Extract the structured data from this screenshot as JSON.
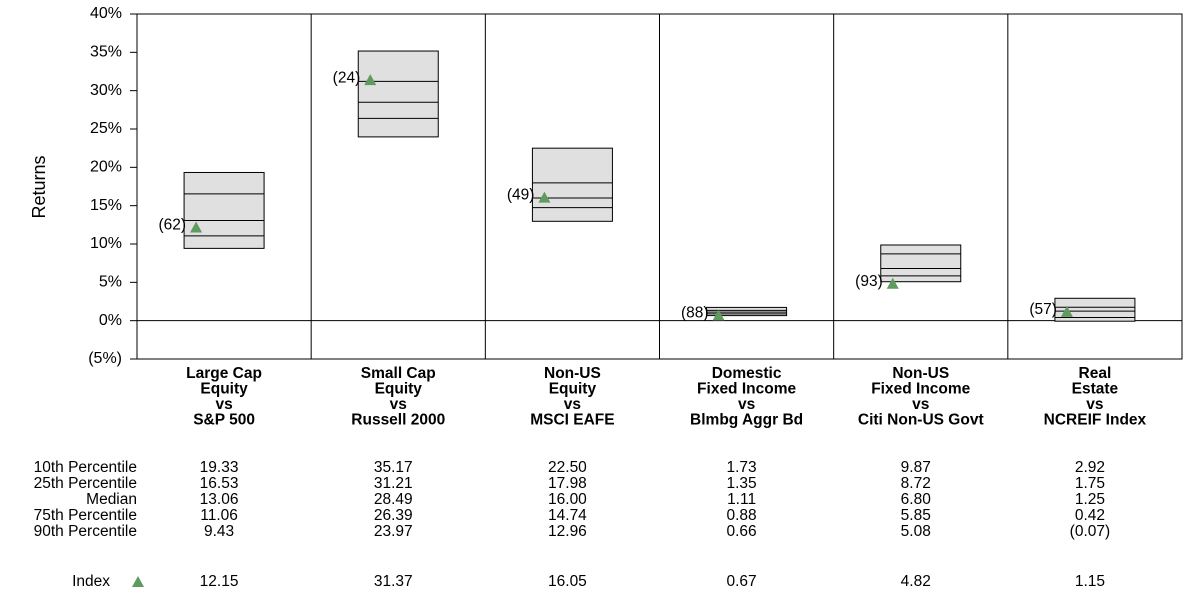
{
  "chart_data": {
    "type": "floating_box",
    "ylabel": "Returns",
    "ylim": [
      -5,
      40
    ],
    "yticks": [
      {
        "value": -5,
        "label": "(5%)"
      },
      {
        "value": 0,
        "label": "0%"
      },
      {
        "value": 5,
        "label": "5%"
      },
      {
        "value": 10,
        "label": "10%"
      },
      {
        "value": 15,
        "label": "15%"
      },
      {
        "value": 20,
        "label": "20%"
      },
      {
        "value": 25,
        "label": "25%"
      },
      {
        "value": 30,
        "label": "30%"
      },
      {
        "value": 35,
        "label": "35%"
      },
      {
        "value": 40,
        "label": "40%"
      }
    ],
    "box_color": "#e0e0e0",
    "negative_color": "#e8000b",
    "categories": [
      [
        "Large Cap",
        "Equity",
        "vs",
        "S&P 500"
      ],
      [
        "Small Cap",
        "Equity",
        "vs",
        "Russell 2000"
      ],
      [
        "Non-US",
        "Equity",
        "vs",
        "MSCI EAFE"
      ],
      [
        "Domestic",
        "Fixed Income",
        "vs",
        "Blmbg Aggr Bd"
      ],
      [
        "Non-US",
        "Fixed Income",
        "vs",
        "Citi Non-US Govt"
      ],
      [
        "Real",
        "Estate",
        "vs",
        "NCREIF Index"
      ]
    ],
    "series": [
      {
        "name": "10th Percentile",
        "values": [
          19.33,
          35.17,
          22.5,
          1.73,
          9.87,
          2.92
        ],
        "value_labels": [
          "19.33",
          "35.17",
          "22.50",
          "1.73",
          "9.87",
          "2.92"
        ]
      },
      {
        "name": "25th Percentile",
        "values": [
          16.53,
          31.21,
          17.98,
          1.35,
          8.72,
          1.75
        ],
        "value_labels": [
          "16.53",
          "31.21",
          "17.98",
          "1.35",
          "8.72",
          "1.75"
        ]
      },
      {
        "name": "Median",
        "values": [
          13.06,
          28.49,
          16,
          1.11,
          6.8,
          1.25
        ],
        "value_labels": [
          "13.06",
          "28.49",
          "16.00",
          "1.11",
          "6.80",
          "1.25"
        ]
      },
      {
        "name": "75th Percentile",
        "values": [
          11.06,
          26.39,
          14.74,
          0.88,
          5.85,
          0.42
        ],
        "value_labels": [
          "11.06",
          "26.39",
          "14.74",
          "0.88",
          "5.85",
          "0.42"
        ]
      },
      {
        "name": "90th Percentile",
        "values": [
          9.43,
          23.97,
          12.96,
          0.66,
          5.08,
          -0.07
        ],
        "value_labels": [
          "9.43",
          "23.97",
          "12.96",
          "0.66",
          "5.08",
          "(0.07)"
        ]
      },
      {
        "name": "Index",
        "color": "#5f9a5f",
        "values": [
          12.15,
          31.37,
          16.05,
          0.67,
          4.82,
          1.15
        ],
        "value_labels": [
          "12.15",
          "31.37",
          "16.05",
          "0.67",
          "4.82",
          "1.15"
        ],
        "ranks": [
          62,
          24,
          49,
          88,
          93,
          57
        ],
        "rank_labels": [
          "(62)",
          "(24)",
          "(49)",
          "(88)",
          "(93)",
          "(57)"
        ]
      }
    ]
  }
}
